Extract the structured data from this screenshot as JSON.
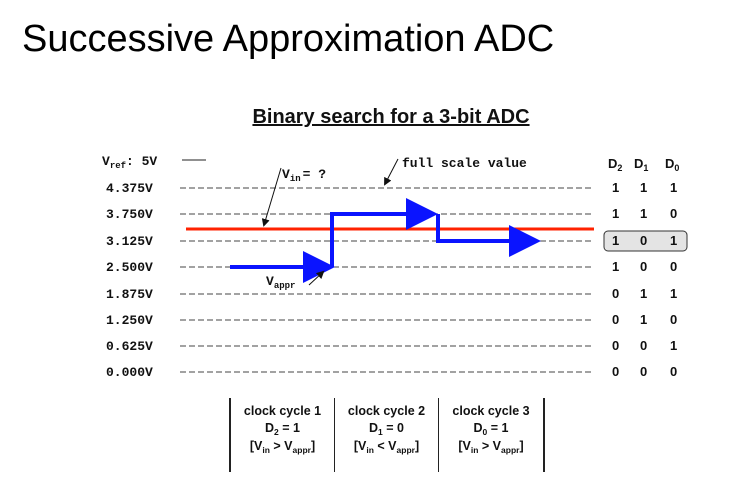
{
  "slide_title": "Successive Approximation ADC",
  "diagram_title": "Binary search for a 3-bit ADC",
  "vref_label": {
    "main": "V",
    "sub": "ref",
    "rest": ": 5V"
  },
  "levels": [
    {
      "label": "4.375V",
      "bits": [
        "1",
        "1",
        "1"
      ]
    },
    {
      "label": "3.750V",
      "bits": [
        "1",
        "1",
        "0"
      ]
    },
    {
      "label": "3.125V",
      "bits": [
        "1",
        "0",
        "1"
      ],
      "highlight": true
    },
    {
      "label": "2.500V",
      "bits": [
        "1",
        "0",
        "0"
      ]
    },
    {
      "label": "1.875V",
      "bits": [
        "0",
        "1",
        "1"
      ]
    },
    {
      "label": "1.250V",
      "bits": [
        "0",
        "1",
        "0"
      ]
    },
    {
      "label": "0.625V",
      "bits": [
        "0",
        "0",
        "1"
      ]
    },
    {
      "label": "0.000V",
      "bits": [
        "0",
        "0",
        "0"
      ]
    }
  ],
  "bit_headers": [
    {
      "main": "D",
      "sub": "2"
    },
    {
      "main": "D",
      "sub": "1"
    },
    {
      "main": "D",
      "sub": "0"
    }
  ],
  "annotations": {
    "vin": {
      "main": "V",
      "sub": "in",
      "rest": "= ?"
    },
    "full_scale": "full scale value",
    "vappr": {
      "main": "V",
      "sub": "appr"
    }
  },
  "cycles": [
    {
      "title": "clock cycle 1",
      "bit": "D",
      "bit_sub": "2",
      "value": " = 1",
      "cmp_left": "[V",
      "cmp_left_sub": "in",
      "op": " > V",
      "cmp_right_sub": "appr",
      "close": "]"
    },
    {
      "title": "clock cycle 2",
      "bit": "D",
      "bit_sub": "1",
      "value": " = 0",
      "cmp_left": "[V",
      "cmp_left_sub": "in",
      "op": " < V",
      "cmp_right_sub": "appr",
      "close": "]"
    },
    {
      "title": "clock cycle 3",
      "bit": "D",
      "bit_sub": "0",
      "value": " = 1",
      "cmp_left": "[V",
      "cmp_left_sub": "in",
      "op": " > V",
      "cmp_right_sub": "appr",
      "close": "]"
    }
  ],
  "colors": {
    "vin_line": "#ff2200",
    "vappr_line": "#0a14ff",
    "highlight_fill": "#e4e4e4"
  }
}
